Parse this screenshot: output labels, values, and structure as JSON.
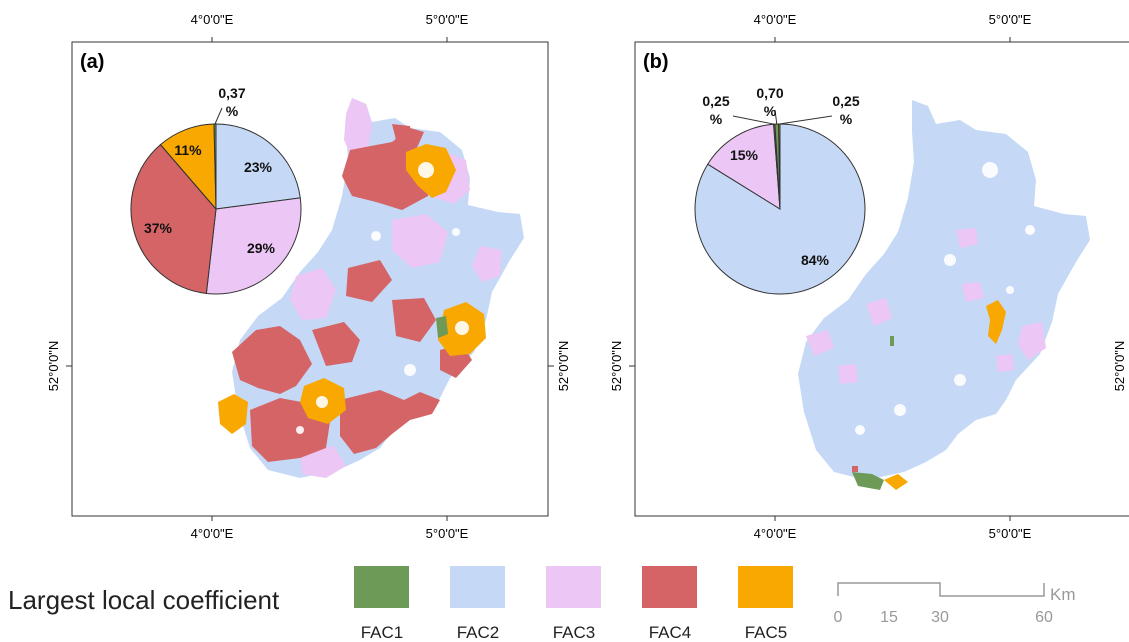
{
  "panels": [
    {
      "label": "(a)",
      "top_ticks": [
        "4°0'0\"E",
        "5°0'0\"E"
      ],
      "bottom_ticks": [
        "4°0'0\"E",
        "5°0'0\"E"
      ],
      "left_tick": "52°0'0\"N",
      "right_tick": "52°0'0\"N",
      "pie": [
        {
          "name": "FAC2",
          "percent": 23,
          "label": "23%"
        },
        {
          "name": "FAC3",
          "percent": 29,
          "label": "29%"
        },
        {
          "name": "FAC4",
          "percent": 37,
          "label": "37%"
        },
        {
          "name": "FAC5",
          "percent": 11,
          "label": "11%"
        },
        {
          "name": "FAC1",
          "percent": 0.37,
          "label": "0,37\n%"
        }
      ]
    },
    {
      "label": "(b)",
      "top_ticks": [
        "4°0'0\"E",
        "5°0'0\"E"
      ],
      "bottom_ticks": [
        "4°0'0\"E",
        "5°0'0\"E"
      ],
      "left_tick": "52°0'0\"N",
      "right_tick": "52°0'0\"N",
      "pie": [
        {
          "name": "FAC2",
          "percent": 84,
          "label": "84%"
        },
        {
          "name": "FAC3",
          "percent": 15,
          "label": "15%"
        },
        {
          "name": "FAC4",
          "percent": 0.25,
          "label": "0,25\n%"
        },
        {
          "name": "FAC1",
          "percent": 0.7,
          "label": "0,70\n%"
        },
        {
          "name": "FAC5",
          "percent": 0.25,
          "label": "0,25\n%"
        }
      ]
    }
  ],
  "legend": {
    "title": "Largest local coefficient",
    "items": [
      {
        "name": "FAC1",
        "color": "#6e9a58"
      },
      {
        "name": "FAC2",
        "color": "#c5d9f7"
      },
      {
        "name": "FAC3",
        "color": "#ecc6f4"
      },
      {
        "name": "FAC4",
        "color": "#d46466"
      },
      {
        "name": "FAC5",
        "color": "#f8a800"
      }
    ]
  },
  "scale_bar": {
    "labels": [
      "0",
      "15",
      "30",
      "60"
    ],
    "unit": "Km"
  }
}
